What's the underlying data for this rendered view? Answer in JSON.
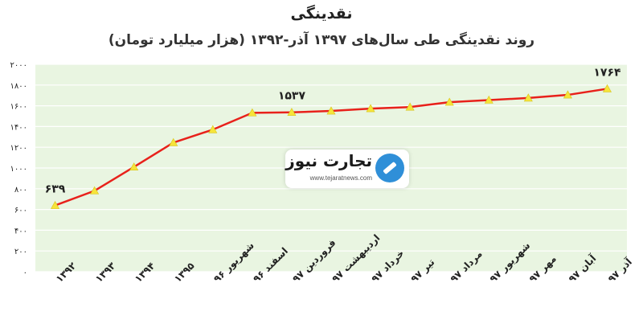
{
  "chart_title": "نقدینگی",
  "chart_subtitle": "روند نقدینگی طی سال‌های ۱۳۹۷ آذر-۱۳۹۲ (هزار میلیارد تومان)",
  "watermark": {
    "name": "تجارت نیوز",
    "url": "www.tejaratnews.com"
  },
  "colors": {
    "plot_background": "#e9f5e1",
    "line": "#e8211b",
    "marker": "#f6e43a",
    "grid": "#ffffff",
    "text": "#222222"
  },
  "chart_data": {
    "type": "line",
    "categories": [
      "۱۳۹۲",
      "۱۳۹۳",
      "۱۳۹۴",
      "۱۳۹۵",
      "شهریور ۹۶",
      "اسفند ۹۶",
      "فروردین ۹۷",
      "اردیبهشت ۹۷",
      "خرداد ۹۷",
      "تیر ۹۷",
      "مرداد ۹۷",
      "شهریور ۹۷",
      "مهر ۹۷",
      "آبان ۹۷",
      "آذر ۹۷"
    ],
    "series": [
      {
        "values": [
          639,
          780,
          1010,
          1245,
          1370,
          1532,
          1537,
          1550,
          1573,
          1588,
          1635,
          1655,
          1675,
          1705,
          1764
        ]
      }
    ],
    "ylim": [
      0,
      2000
    ],
    "yticks": [
      0,
      200,
      400,
      600,
      800,
      1000,
      1200,
      1400,
      1600,
      1800,
      2000
    ],
    "ytick_labels": [
      "۰",
      "۲۰۰",
      "۴۰۰",
      "۶۰۰",
      "۸۰۰",
      "۱۰۰۰",
      "۱۲۰۰",
      "۱۴۰۰",
      "۱۶۰۰",
      "۱۸۰۰",
      "۲۰۰۰"
    ],
    "data_labels": [
      {
        "index": 0,
        "text": "۶۳۹"
      },
      {
        "index": 6,
        "text": "۱۵۳۷"
      },
      {
        "index": 14,
        "text": "۱۷۶۴"
      }
    ],
    "grid": true,
    "legend": "none"
  }
}
